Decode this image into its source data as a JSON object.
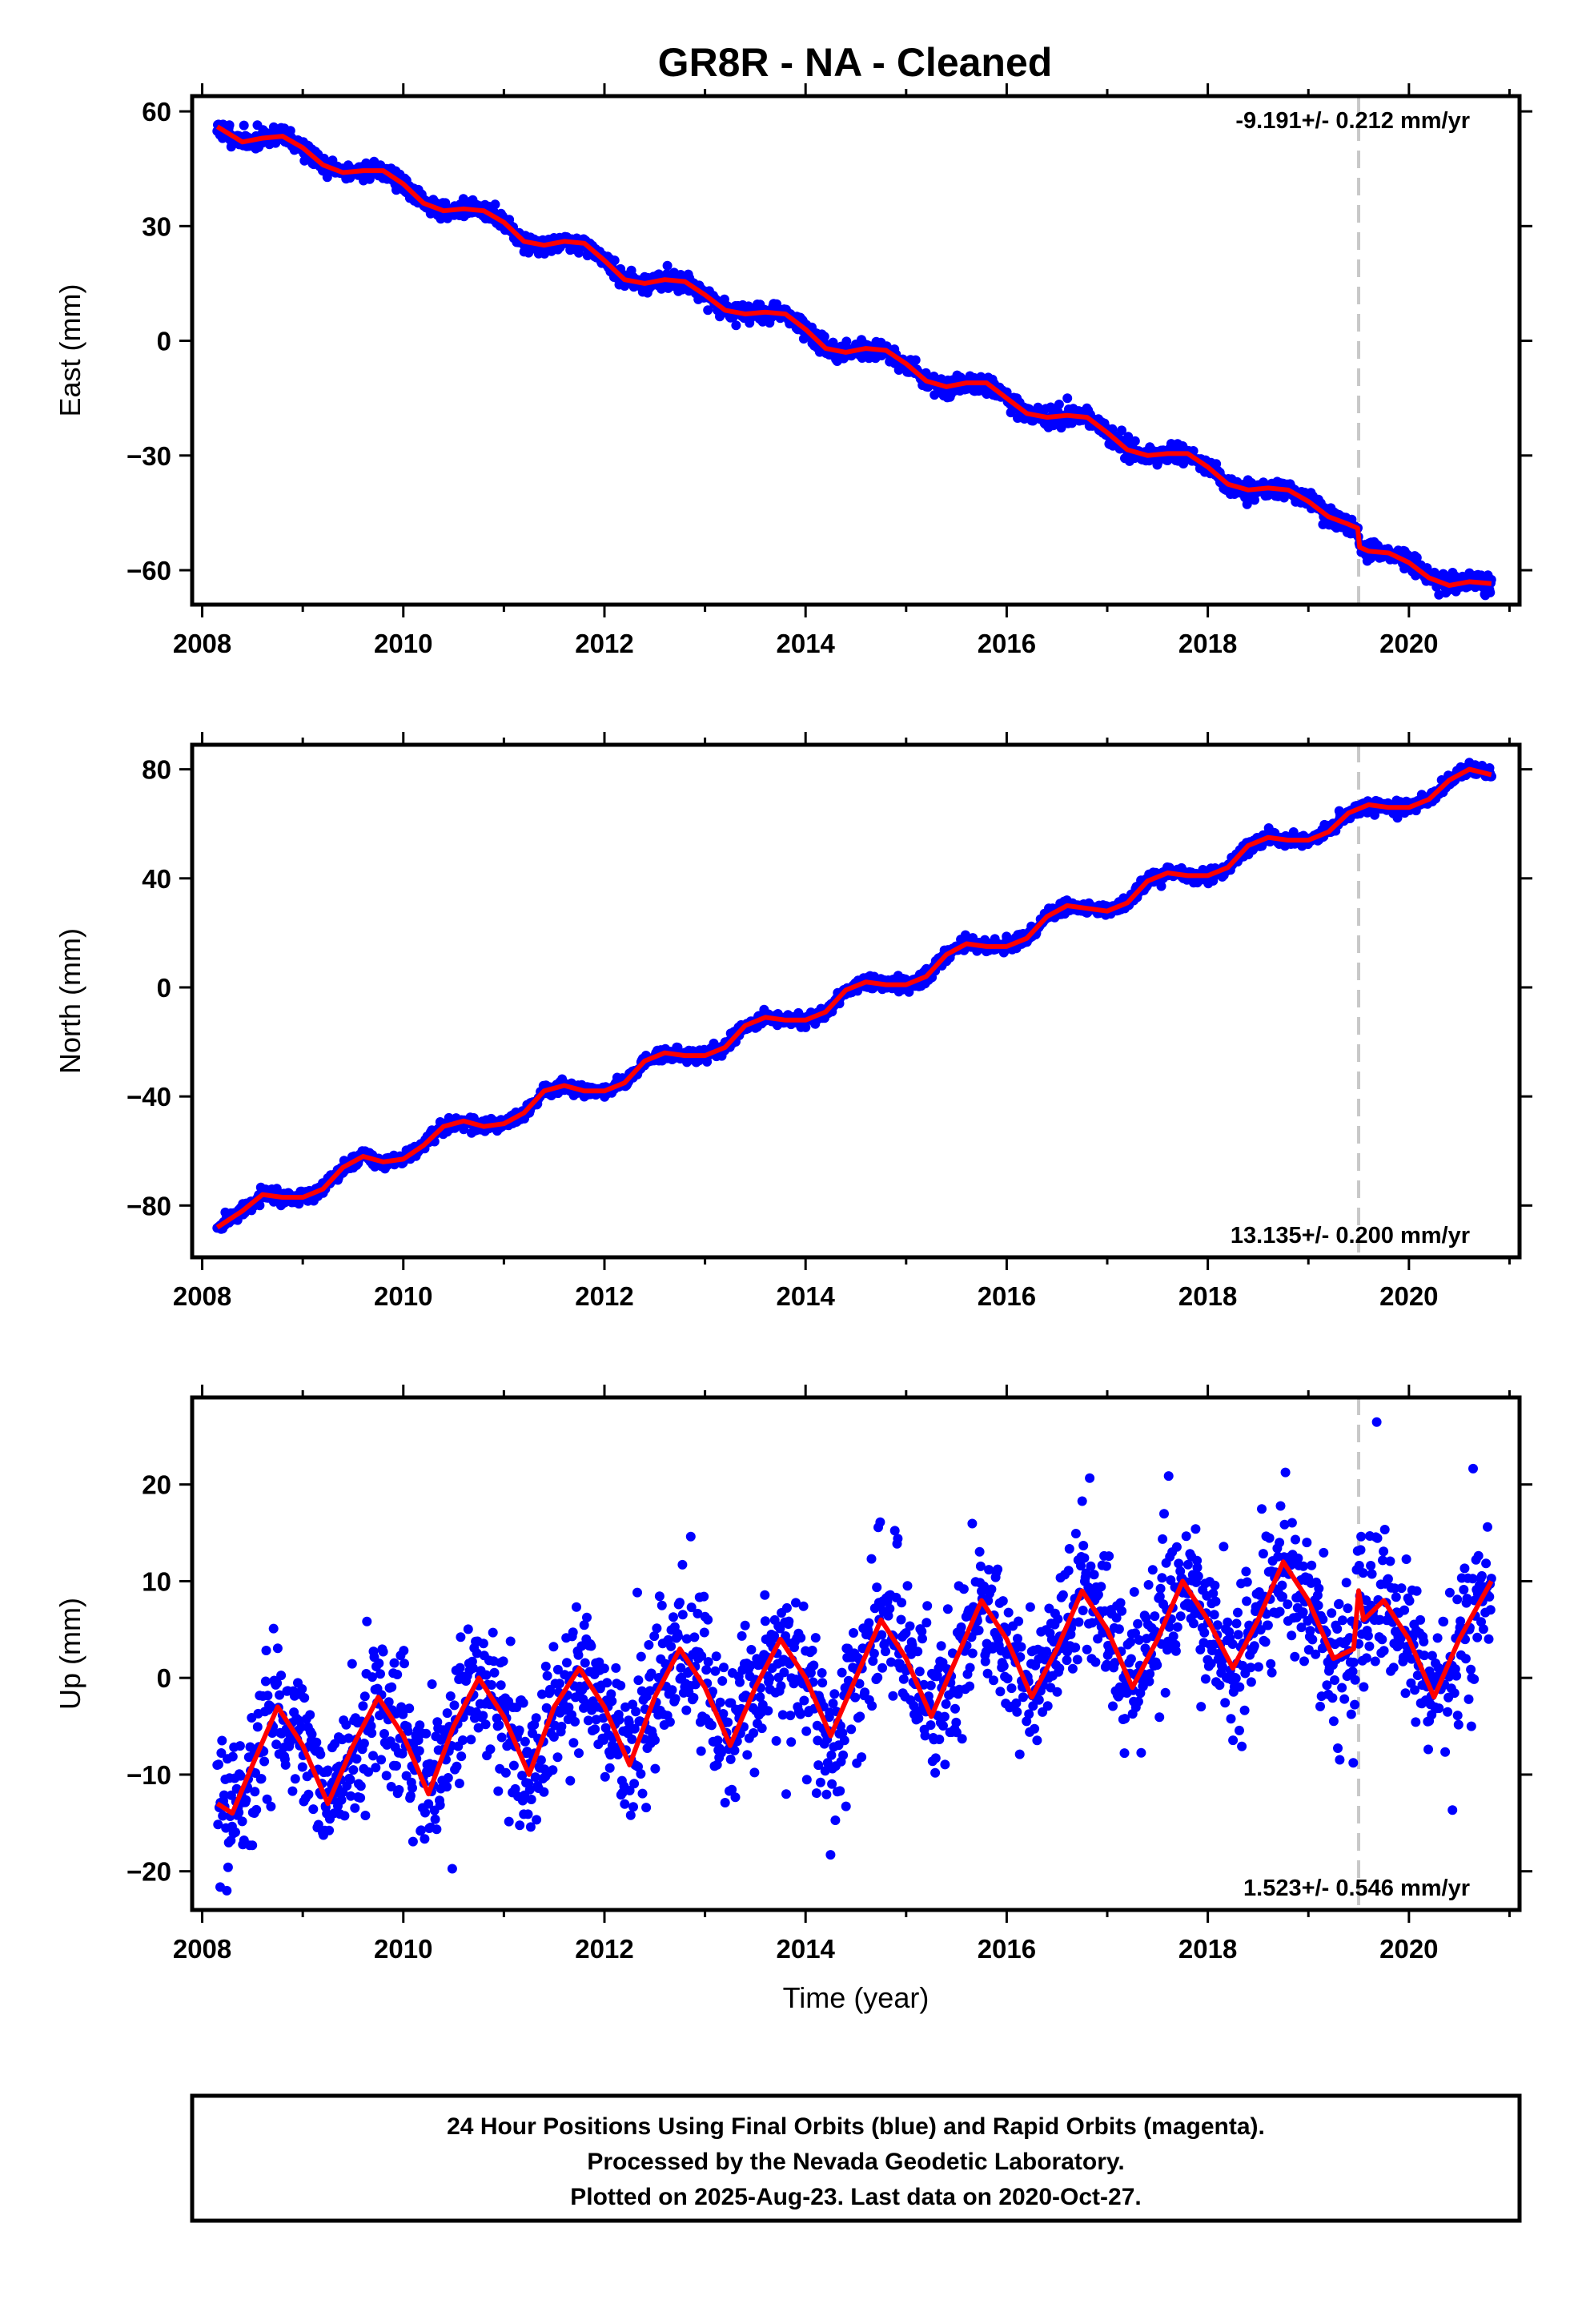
{
  "title": "GR8R  - NA - Cleaned",
  "footer": {
    "lines": [
      "24 Hour Positions Using Final Orbits (blue) and Rapid Orbits (magenta).",
      "Processed by the Nevada Geodetic Laboratory.",
      "Plotted on 2025-Aug-23. Last data on 2020-Oct-27."
    ]
  },
  "colors": {
    "points": "#0000ff",
    "model": "#ff0000",
    "equipment_change_line": "#c8c8c8",
    "frame": "#000000"
  },
  "chart_data": [
    {
      "type": "scatter",
      "component": "east",
      "ylabel": "East (mm)",
      "xlabel": "",
      "xlim": [
        2007.9,
        2021.1
      ],
      "ylim": [
        -69,
        64
      ],
      "xticks": [
        2008,
        2010,
        2012,
        2014,
        2016,
        2018,
        2020
      ],
      "xtick_labels": [
        "2008",
        "2010",
        "2012",
        "2014",
        "2016",
        "2018",
        "2020"
      ],
      "yticks": [
        60,
        30,
        0,
        -30,
        -60
      ],
      "ytick_labels": [
        "60",
        "30",
        "0",
        "−30",
        "−60"
      ],
      "rate_label": "-9.191+/- 0.212 mm/yr",
      "rate_position": "top-right",
      "equipment_change_year": 2019.5,
      "model": {
        "x": [
          2008.15,
          2008.4,
          2008.6,
          2008.8,
          2009.0,
          2009.2,
          2009.4,
          2009.6,
          2009.8,
          2010.0,
          2010.2,
          2010.4,
          2010.6,
          2010.8,
          2011.0,
          2011.2,
          2011.4,
          2011.6,
          2011.8,
          2012.0,
          2012.2,
          2012.4,
          2012.6,
          2012.8,
          2013.0,
          2013.2,
          2013.4,
          2013.6,
          2013.8,
          2014.0,
          2014.2,
          2014.4,
          2014.6,
          2014.8,
          2015.0,
          2015.2,
          2015.4,
          2015.6,
          2015.8,
          2016.0,
          2016.2,
          2016.4,
          2016.6,
          2016.8,
          2017.0,
          2017.2,
          2017.4,
          2017.6,
          2017.8,
          2018.0,
          2018.2,
          2018.4,
          2018.6,
          2018.8,
          2019.0,
          2019.2,
          2019.4,
          2019.49,
          2019.51,
          2019.6,
          2019.8,
          2020.0,
          2020.2,
          2020.4,
          2020.6,
          2020.82
        ],
        "y": [
          56,
          52,
          53,
          53.5,
          50.5,
          46,
          44,
          44.5,
          44.5,
          41,
          36,
          34,
          34.5,
          34,
          31,
          26,
          25,
          26,
          25.5,
          21,
          16,
          15,
          16,
          15.5,
          12,
          8,
          7,
          7.5,
          7,
          3,
          -2,
          -3,
          -2,
          -2.5,
          -6,
          -10.5,
          -12,
          -11,
          -11,
          -15,
          -19,
          -20,
          -19.5,
          -20,
          -24,
          -28.5,
          -30,
          -29.5,
          -29.5,
          -33,
          -37.5,
          -39,
          -38.5,
          -39,
          -42,
          -46,
          -48,
          -49,
          -54,
          -55,
          -55.5,
          -58,
          -62,
          -64,
          -63,
          -63.5
        ]
      },
      "points_note": ""
    },
    {
      "type": "scatter",
      "component": "north",
      "ylabel": "North (mm)",
      "xlabel": "",
      "xlim": [
        2007.9,
        2021.1
      ],
      "ylim": [
        -99,
        89
      ],
      "xticks": [
        2008,
        2010,
        2012,
        2014,
        2016,
        2018,
        2020
      ],
      "xtick_labels": [
        "2008",
        "2010",
        "2012",
        "2014",
        "2016",
        "2018",
        "2020"
      ],
      "yticks": [
        80,
        40,
        0,
        -40,
        -80
      ],
      "ytick_labels": [
        "80",
        "40",
        "0",
        "−40",
        "−80"
      ],
      "rate_label": "13.135+/- 0.200 mm/yr",
      "rate_position": "bottom-right",
      "equipment_change_year": 2019.5,
      "model": {
        "x": [
          2008.15,
          2008.4,
          2008.6,
          2008.8,
          2009.0,
          2009.2,
          2009.4,
          2009.6,
          2009.8,
          2010.0,
          2010.2,
          2010.4,
          2010.6,
          2010.8,
          2011.0,
          2011.2,
          2011.4,
          2011.6,
          2011.8,
          2012.0,
          2012.2,
          2012.4,
          2012.6,
          2012.8,
          2013.0,
          2013.2,
          2013.4,
          2013.6,
          2013.8,
          2014.0,
          2014.2,
          2014.4,
          2014.6,
          2014.8,
          2015.0,
          2015.2,
          2015.4,
          2015.6,
          2015.8,
          2016.0,
          2016.2,
          2016.4,
          2016.6,
          2016.8,
          2017.0,
          2017.2,
          2017.4,
          2017.6,
          2017.8,
          2018.0,
          2018.2,
          2018.4,
          2018.6,
          2018.8,
          2019.0,
          2019.2,
          2019.4,
          2019.6,
          2019.8,
          2020.0,
          2020.2,
          2020.4,
          2020.6,
          2020.82
        ],
        "y": [
          -88,
          -82,
          -76,
          -77,
          -77,
          -74,
          -66,
          -62,
          -64,
          -63,
          -58,
          -51,
          -49,
          -51,
          -50,
          -46,
          -38,
          -36,
          -38,
          -38,
          -35,
          -27,
          -24,
          -25,
          -25,
          -22,
          -14,
          -11,
          -12,
          -12,
          -9,
          -1,
          2,
          1,
          1,
          4,
          12,
          16,
          15,
          15,
          18,
          26,
          30,
          29,
          28,
          31,
          39,
          42,
          41,
          41,
          44,
          52,
          55,
          54,
          54,
          57,
          64,
          67,
          66,
          66,
          69,
          76,
          80,
          78
        ]
      },
      "points_note": ""
    },
    {
      "type": "scatter",
      "component": "up",
      "ylabel": "Up (mm)",
      "xlabel": "Time (year)",
      "xlim": [
        2007.9,
        2021.1
      ],
      "ylim": [
        -24,
        29
      ],
      "xticks": [
        2008,
        2010,
        2012,
        2014,
        2016,
        2018,
        2020
      ],
      "xtick_labels": [
        "2008",
        "2010",
        "2012",
        "2014",
        "2016",
        "2018",
        "2020"
      ],
      "yticks": [
        20,
        10,
        0,
        -10,
        -20
      ],
      "ytick_labels": [
        "20",
        "10",
        "0",
        "−10",
        "−20"
      ],
      "rate_label": "1.523+/- 0.546 mm/yr",
      "rate_position": "bottom-right",
      "equipment_change_year": 2019.5,
      "model": {
        "x": [
          2008.15,
          2008.3,
          2008.5,
          2008.75,
          2009.0,
          2009.25,
          2009.5,
          2009.75,
          2010.0,
          2010.25,
          2010.5,
          2010.75,
          2011.0,
          2011.25,
          2011.5,
          2011.75,
          2012.0,
          2012.25,
          2012.5,
          2012.75,
          2013.0,
          2013.25,
          2013.5,
          2013.75,
          2014.0,
          2014.25,
          2014.5,
          2014.75,
          2015.0,
          2015.25,
          2015.5,
          2015.75,
          2016.0,
          2016.25,
          2016.5,
          2016.75,
          2017.0,
          2017.25,
          2017.5,
          2017.75,
          2018.0,
          2018.25,
          2018.5,
          2018.75,
          2019.0,
          2019.25,
          2019.45,
          2019.5,
          2019.55,
          2019.75,
          2020.0,
          2020.25,
          2020.5,
          2020.82
        ],
        "y": [
          -13,
          -14,
          -9,
          -3,
          -7,
          -13,
          -7,
          -2,
          -6,
          -12,
          -5,
          0,
          -4,
          -10,
          -3,
          1,
          -3,
          -9,
          -2,
          3,
          -1,
          -7,
          -1,
          4,
          0,
          -6,
          0,
          6,
          2,
          -4,
          2,
          8,
          4,
          -2,
          3,
          9,
          5,
          -1,
          4,
          10,
          6,
          1,
          6,
          12,
          8,
          2,
          3,
          9,
          6,
          8,
          4,
          -2,
          4,
          10
        ]
      },
      "points_note": ""
    }
  ]
}
